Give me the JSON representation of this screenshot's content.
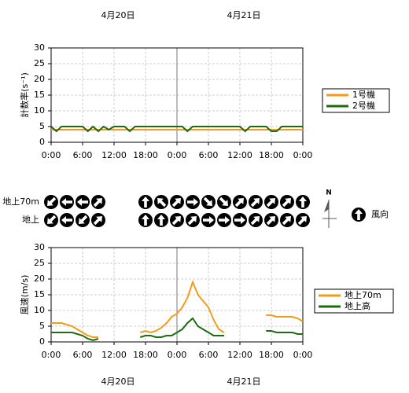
{
  "dates": [
    "4月20日",
    "4月21日"
  ],
  "chart_data": [
    {
      "type": "line",
      "ylabel": "計数率(s⁻¹)",
      "x": [
        0,
        1,
        2,
        3,
        4,
        5,
        6,
        7,
        8,
        9,
        10,
        11,
        12,
        13,
        14,
        15,
        16,
        17,
        18,
        19,
        20,
        21,
        22,
        23,
        24,
        25,
        26,
        27,
        28,
        29,
        30,
        31,
        32,
        33,
        34,
        35,
        36,
        37,
        38,
        39,
        40,
        41,
        42,
        43,
        44,
        45,
        46,
        47,
        48
      ],
      "xlim": [
        0,
        48
      ],
      "xticks": [
        {
          "value": 0,
          "label": "0:00"
        },
        {
          "value": 6,
          "label": "6:00"
        },
        {
          "value": 12,
          "label": "12:00"
        },
        {
          "value": 18,
          "label": "18:00"
        },
        {
          "value": 24,
          "label": "0:00"
        },
        {
          "value": 30,
          "label": "6:00"
        },
        {
          "value": 36,
          "label": "12:00"
        },
        {
          "value": 42,
          "label": "18:00"
        },
        {
          "value": 48,
          "label": "0:00"
        }
      ],
      "ylim": [
        0,
        30
      ],
      "yticks": [
        0,
        5,
        10,
        15,
        20,
        25,
        30
      ],
      "divider": 24,
      "grid": true,
      "series": [
        {
          "name": "1号機",
          "color": "#f59b1c",
          "values": [
            4,
            4,
            4,
            4,
            4,
            4,
            4,
            4,
            4,
            4,
            4,
            4,
            4,
            4,
            4,
            4,
            4,
            4,
            4,
            4,
            4,
            4,
            4,
            4,
            4,
            4,
            4,
            4,
            4,
            4,
            4,
            4,
            4,
            4,
            4,
            4,
            4,
            4,
            4,
            4,
            4,
            4,
            4,
            4,
            4,
            4,
            4,
            4,
            4
          ]
        },
        {
          "name": "2号機",
          "color": "#1e6b12",
          "values": [
            5,
            3.5,
            5,
            5,
            5,
            5,
            5,
            3.5,
            5,
            3.5,
            5,
            4,
            5,
            5,
            5,
            3.5,
            5,
            5,
            5,
            5,
            5,
            5,
            5,
            5,
            5,
            5,
            3.5,
            5,
            5,
            5,
            5,
            5,
            5,
            5,
            5,
            5,
            5,
            3.5,
            5,
            5,
            5,
            5,
            3.5,
            3.5,
            5,
            5,
            5,
            5,
            5
          ]
        }
      ]
    },
    {
      "type": "line",
      "ylabel": "風速(m/s)",
      "x": [
        0,
        1,
        2,
        3,
        4,
        5,
        6,
        7,
        8,
        9,
        10,
        11,
        12,
        13,
        14,
        15,
        16,
        17,
        18,
        19,
        20,
        21,
        22,
        23,
        24,
        25,
        26,
        27,
        28,
        29,
        30,
        31,
        32,
        33,
        34,
        35,
        36,
        37,
        38,
        39,
        40,
        41,
        42,
        43,
        44,
        45,
        46,
        47,
        48
      ],
      "xlim": [
        0,
        48
      ],
      "xticks": [
        {
          "value": 0,
          "label": "0:00"
        },
        {
          "value": 6,
          "label": "6:00"
        },
        {
          "value": 12,
          "label": "12:00"
        },
        {
          "value": 18,
          "label": "18:00"
        },
        {
          "value": 24,
          "label": "0:00"
        },
        {
          "value": 30,
          "label": "6:00"
        },
        {
          "value": 36,
          "label": "12:00"
        },
        {
          "value": 42,
          "label": "18:00"
        },
        {
          "value": 48,
          "label": "0:00"
        }
      ],
      "ylim": [
        0,
        30
      ],
      "yticks": [
        0,
        5,
        10,
        15,
        20,
        25,
        30
      ],
      "divider": 24,
      "grid": true,
      "series": [
        {
          "name": "地上70m",
          "color": "#f59b1c",
          "values": [
            6,
            6,
            6,
            5.5,
            5,
            4,
            3,
            2,
            1.5,
            1.5,
            null,
            null,
            null,
            null,
            null,
            null,
            null,
            3,
            3.5,
            3,
            3.5,
            4.5,
            6,
            8,
            9,
            11,
            14,
            19,
            15,
            13,
            11,
            7,
            4,
            3,
            null,
            null,
            null,
            null,
            null,
            null,
            null,
            8.5,
            8.5,
            8,
            8,
            8,
            8,
            7.5,
            6.5
          ]
        },
        {
          "name": "地上高",
          "color": "#1e6b12",
          "values": [
            3,
            3,
            3,
            3,
            3,
            2.5,
            2,
            1,
            0.5,
            1,
            null,
            null,
            null,
            null,
            null,
            null,
            null,
            1.5,
            2,
            2,
            1.5,
            1.5,
            2,
            2,
            3,
            4,
            6,
            7.5,
            5,
            4,
            3,
            2,
            2,
            2,
            null,
            null,
            null,
            null,
            null,
            null,
            null,
            3.5,
            3.5,
            3,
            3,
            3,
            3,
            2.5,
            2.5
          ]
        }
      ]
    }
  ],
  "wind": {
    "legend_label": "風向",
    "north": "N",
    "rows": [
      {
        "label": "地上70m",
        "x": [
          0,
          3,
          6,
          9,
          18,
          21,
          24,
          27,
          30,
          33,
          36,
          39,
          42,
          45,
          48
        ],
        "directions": [
          225,
          270,
          270,
          45,
          0,
          315,
          45,
          90,
          135,
          135,
          45,
          45,
          45,
          45,
          0
        ]
      },
      {
        "label": "地上",
        "x": [
          0,
          3,
          6,
          9,
          18,
          21,
          24,
          27,
          30,
          33,
          36,
          39,
          42,
          45,
          48
        ],
        "directions": [
          225,
          270,
          225,
          45,
          0,
          0,
          45,
          45,
          90,
          90,
          90,
          45,
          45,
          45,
          45
        ]
      }
    ]
  }
}
